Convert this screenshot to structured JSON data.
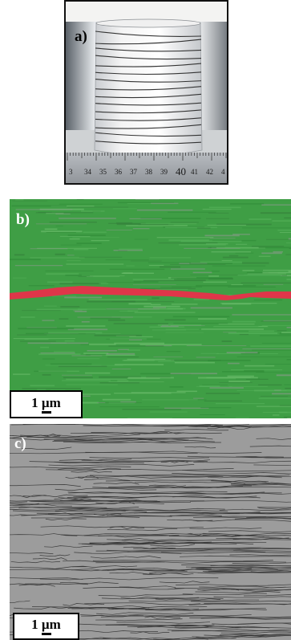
{
  "panels": {
    "a": {
      "label": "a)"
    },
    "b": {
      "label": "b)",
      "scale_bar": "1 µm"
    },
    "c": {
      "label": "c)",
      "scale_bar": "1 µm"
    }
  },
  "ruler": {
    "numbers": [
      "3",
      "34",
      "35",
      "36",
      "37",
      "38",
      "39",
      "40",
      "41",
      "42",
      "4"
    ]
  },
  "colors": {
    "phase_green": "#3f9e45",
    "phase_red": "#e8304a",
    "boundary_gray": "#9c9c9c"
  }
}
